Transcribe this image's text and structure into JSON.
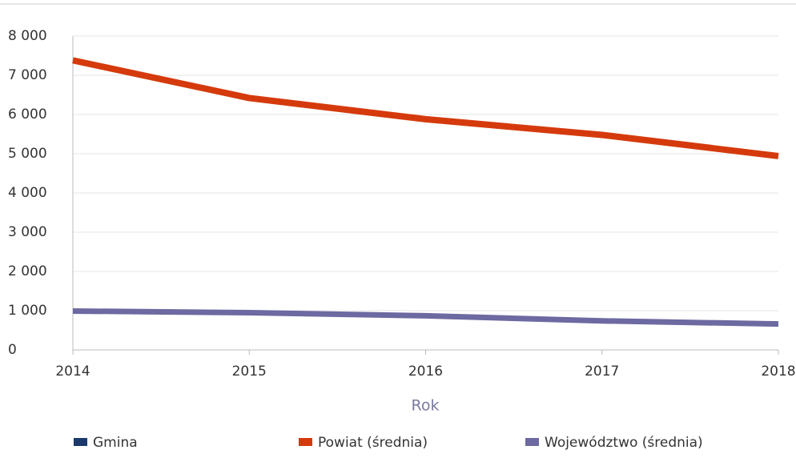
{
  "chart_data": {
    "type": "line",
    "x": [
      2014,
      2015,
      2016,
      2017,
      2018
    ],
    "xlim": [
      2014,
      2018
    ],
    "xticks": [
      2014,
      2015,
      2016,
      2017,
      2018
    ],
    "xlabel": "Rok",
    "ylim": [
      0,
      8000
    ],
    "yticks": [
      0,
      {
        "value": 1000,
        "label": "1 000"
      },
      {
        "value": 2000,
        "label": "2 000"
      },
      {
        "value": 3000,
        "label": "3 000"
      },
      {
        "value": 4000,
        "label": "4 000"
      },
      {
        "value": 5000,
        "label": "5 000"
      },
      {
        "value": 6000,
        "label": "6 000"
      },
      {
        "value": 7000,
        "label": "7 000"
      },
      {
        "value": 8000,
        "label": "8 000"
      }
    ],
    "grid": true,
    "legend": "bottom",
    "series": [
      {
        "name": "Gmina",
        "color": "#1b3a6b",
        "values": [
          null,
          null,
          null,
          null,
          null
        ]
      },
      {
        "name": "Powiat (średnia)",
        "color": "#d53a0d",
        "values": [
          7380,
          6420,
          5880,
          5480,
          4940
        ]
      },
      {
        "name": "Województwo (średnia)",
        "color": "#6d69a1",
        "values": [
          990,
          950,
          870,
          740,
          660
        ]
      }
    ]
  }
}
